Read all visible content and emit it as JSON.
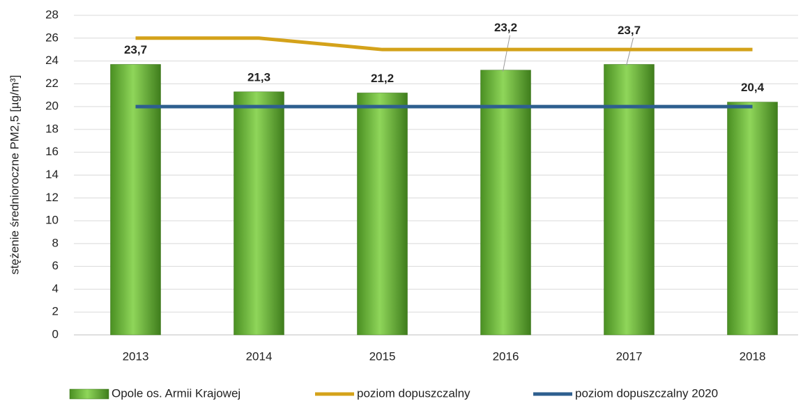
{
  "chart_data": {
    "type": "bar",
    "y_label": "stężenie średnioroczne PM2,5 [µg/m³]",
    "categories": [
      "2013",
      "2014",
      "2015",
      "2016",
      "2017",
      "2018"
    ],
    "series": [
      {
        "name": "Opole os. Armii Krajowej",
        "type": "bar",
        "color": "#6ab93a",
        "values": [
          23.7,
          21.3,
          21.2,
          23.2,
          23.7,
          20.4
        ],
        "value_labels": [
          "23,7",
          "21,3",
          "21,2",
          "23,2",
          "23,7",
          "20,4"
        ]
      },
      {
        "name": "poziom dopuszczalny",
        "type": "line",
        "color": "#d4a21a",
        "values": [
          26,
          26,
          25,
          25,
          25,
          25
        ]
      },
      {
        "name": "poziom dopuszczalny 2020",
        "type": "line",
        "color": "#2e5f8f",
        "values": [
          20,
          20,
          20,
          20,
          20,
          20
        ]
      }
    ],
    "ylim": [
      0,
      28
    ],
    "yticks": [
      0,
      2,
      4,
      6,
      8,
      10,
      12,
      14,
      16,
      18,
      20,
      22,
      24,
      26,
      28
    ],
    "grid": true,
    "legend": "bottom"
  }
}
